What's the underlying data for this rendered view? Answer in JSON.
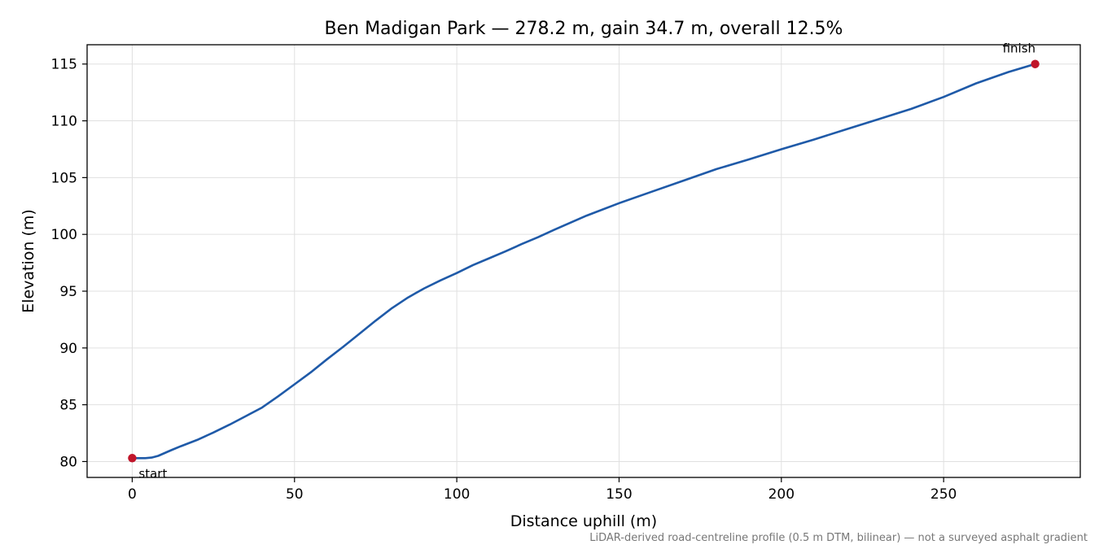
{
  "chart_data": {
    "type": "line",
    "title": "Ben Madigan Park — 278.2 m, gain 34.7 m, overall 12.5%",
    "xlabel": "Distance uphill (m)",
    "ylabel": "Elevation (m)",
    "xlim": [
      -13.9,
      292.1
    ],
    "ylim": [
      78.6,
      116.7
    ],
    "xticks": [
      0,
      50,
      100,
      150,
      200,
      250
    ],
    "yticks": [
      80,
      85,
      90,
      95,
      100,
      105,
      110,
      115
    ],
    "grid": true,
    "footnote": "LiDAR-derived road-centreline profile (0.5 m DTM, bilinear) — not a surveyed asphalt gradient",
    "colors": {
      "line": "#1f5aa8",
      "marker": "#c0152a",
      "grid": "#e0e0e0"
    },
    "series": [
      {
        "x": [
          0,
          2,
          4,
          6,
          8,
          10,
          12,
          15,
          20,
          25,
          30,
          35,
          40,
          45,
          50,
          55,
          60,
          65,
          70,
          75,
          80,
          85,
          90,
          95,
          100,
          105,
          110,
          115,
          120,
          125,
          130,
          140,
          150,
          160,
          170,
          180,
          190,
          200,
          210,
          220,
          230,
          240,
          250,
          260,
          270,
          278.2
        ],
        "y": [
          80.3,
          80.3,
          80.3,
          80.35,
          80.5,
          80.75,
          81.0,
          81.35,
          81.9,
          82.55,
          83.25,
          84.0,
          84.75,
          85.75,
          86.8,
          87.85,
          89.0,
          90.1,
          91.25,
          92.4,
          93.5,
          94.45,
          95.25,
          95.95,
          96.6,
          97.3,
          97.9,
          98.5,
          99.15,
          99.75,
          100.4,
          101.65,
          102.75,
          103.75,
          104.75,
          105.75,
          106.6,
          107.5,
          108.35,
          109.25,
          110.15,
          111.05,
          112.1,
          113.3,
          114.3,
          115.0
        ]
      }
    ],
    "annotations": [
      {
        "label": "start",
        "x": 0,
        "y": 80.3
      },
      {
        "label": "finish",
        "x": 278.2,
        "y": 115.0
      }
    ]
  }
}
